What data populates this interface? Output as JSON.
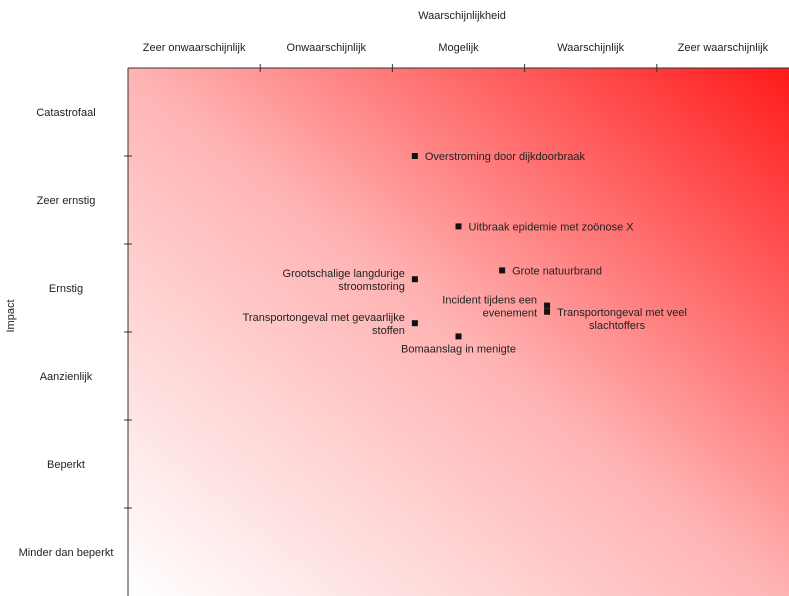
{
  "chart_data": {
    "type": "scatter",
    "xlabel": "Waarschijnlijkheid",
    "ylabel": "Impact",
    "x_categories": [
      "Zeer onwaarschijnlijk",
      "Onwaarschijnlijk",
      "Mogelijk",
      "Waarschijnlijk",
      "Zeer waarschijnlijk"
    ],
    "y_categories": [
      "Catastrofaal",
      "Zeer ernstig",
      "Ernstig",
      "Aanzienlijk",
      "Beperkt",
      "Minder dan beperkt"
    ],
    "xlim": [
      0,
      5
    ],
    "ylim": [
      0,
      6
    ],
    "background": "gradient white (bottom-left) to red (top-right)",
    "accent_color": "#ff1a1a",
    "points": [
      {
        "label": "Overstroming door dijkdoorbraak",
        "x": 2.17,
        "y": 5.0,
        "label_position": "right"
      },
      {
        "label": "Uitbraak epidemie met zoönose X",
        "x": 2.5,
        "y": 4.2,
        "label_position": "right"
      },
      {
        "label": "Grote natuurbrand",
        "x": 2.83,
        "y": 3.7,
        "label_position": "right"
      },
      {
        "label": "Grootschalige langdurige stroomstoring",
        "x": 2.17,
        "y": 3.6,
        "label_position": "left"
      },
      {
        "label": "Incident tijdens een evenement",
        "x": 3.17,
        "y": 3.3,
        "label_position": "left"
      },
      {
        "label": "Transportongeval met veel slachtoffers",
        "x": 3.17,
        "y": 3.23,
        "label_position": "right"
      },
      {
        "label": "Transportongeval met gevaarlijke stoffen",
        "x": 2.17,
        "y": 3.1,
        "label_position": "left"
      },
      {
        "label": "Bomaanslag in menigte",
        "x": 2.5,
        "y": 2.95,
        "label_position": "below"
      }
    ]
  }
}
